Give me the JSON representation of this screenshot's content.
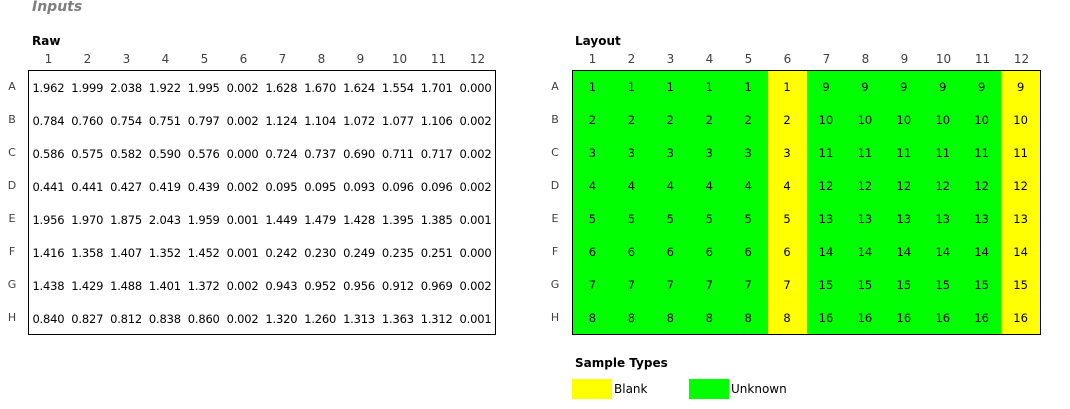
{
  "title": "Inputs",
  "raw": {
    "label": "Raw",
    "columns": [
      "1",
      "2",
      "3",
      "4",
      "5",
      "6",
      "7",
      "8",
      "9",
      "10",
      "11",
      "12"
    ],
    "rows": [
      "A",
      "B",
      "C",
      "D",
      "E",
      "F",
      "G",
      "H"
    ],
    "values": [
      [
        "1.962",
        "1.999",
        "2.038",
        "1.922",
        "1.995",
        "0.002",
        "1.628",
        "1.670",
        "1.624",
        "1.554",
        "1.701",
        "0.000"
      ],
      [
        "0.784",
        "0.760",
        "0.754",
        "0.751",
        "0.797",
        "0.002",
        "1.124",
        "1.104",
        "1.072",
        "1.077",
        "1.106",
        "0.002"
      ],
      [
        "0.586",
        "0.575",
        "0.582",
        "0.590",
        "0.576",
        "0.000",
        "0.724",
        "0.737",
        "0.690",
        "0.711",
        "0.717",
        "0.002"
      ],
      [
        "0.441",
        "0.441",
        "0.427",
        "0.419",
        "0.439",
        "0.002",
        "0.095",
        "0.095",
        "0.093",
        "0.096",
        "0.096",
        "0.002"
      ],
      [
        "1.956",
        "1.970",
        "1.875",
        "2.043",
        "1.959",
        "0.001",
        "1.449",
        "1.479",
        "1.428",
        "1.395",
        "1.385",
        "0.001"
      ],
      [
        "1.416",
        "1.358",
        "1.407",
        "1.352",
        "1.452",
        "0.001",
        "0.242",
        "0.230",
        "0.249",
        "0.235",
        "0.251",
        "0.000"
      ],
      [
        "1.438",
        "1.429",
        "1.488",
        "1.401",
        "1.372",
        "0.002",
        "0.943",
        "0.952",
        "0.956",
        "0.912",
        "0.969",
        "0.002"
      ],
      [
        "0.840",
        "0.827",
        "0.812",
        "0.838",
        "0.860",
        "0.002",
        "1.320",
        "1.260",
        "1.313",
        "1.363",
        "1.312",
        "0.001"
      ]
    ]
  },
  "layout": {
    "label": "Layout",
    "columns": [
      "1",
      "2",
      "3",
      "4",
      "5",
      "6",
      "7",
      "8",
      "9",
      "10",
      "11",
      "12"
    ],
    "rows": [
      "A",
      "B",
      "C",
      "D",
      "E",
      "F",
      "G",
      "H"
    ],
    "values": [
      [
        "1",
        "1",
        "1",
        "1",
        "1",
        "1",
        "9",
        "9",
        "9",
        "9",
        "9",
        "9"
      ],
      [
        "2",
        "2",
        "2",
        "2",
        "2",
        "2",
        "10",
        "10",
        "10",
        "10",
        "10",
        "10"
      ],
      [
        "3",
        "3",
        "3",
        "3",
        "3",
        "3",
        "11",
        "11",
        "11",
        "11",
        "11",
        "11"
      ],
      [
        "4",
        "4",
        "4",
        "4",
        "4",
        "4",
        "12",
        "12",
        "12",
        "12",
        "12",
        "12"
      ],
      [
        "5",
        "5",
        "5",
        "5",
        "5",
        "5",
        "13",
        "13",
        "13",
        "13",
        "13",
        "13"
      ],
      [
        "6",
        "6",
        "6",
        "6",
        "6",
        "6",
        "14",
        "14",
        "14",
        "14",
        "14",
        "14"
      ],
      [
        "7",
        "7",
        "7",
        "7",
        "7",
        "7",
        "15",
        "15",
        "15",
        "15",
        "15",
        "15"
      ],
      [
        "8",
        "8",
        "8",
        "8",
        "8",
        "8",
        "16",
        "16",
        "16",
        "16",
        "16",
        "16"
      ]
    ],
    "blank_columns": [
      6,
      12
    ]
  },
  "legend": {
    "title": "Sample Types",
    "items": [
      {
        "label": "Blank",
        "color": "#ffff00"
      },
      {
        "label": "Unknown",
        "color": "#00ff00"
      }
    ]
  },
  "colors": {
    "blank": "#ffff00",
    "unknown": "#00ff00"
  }
}
